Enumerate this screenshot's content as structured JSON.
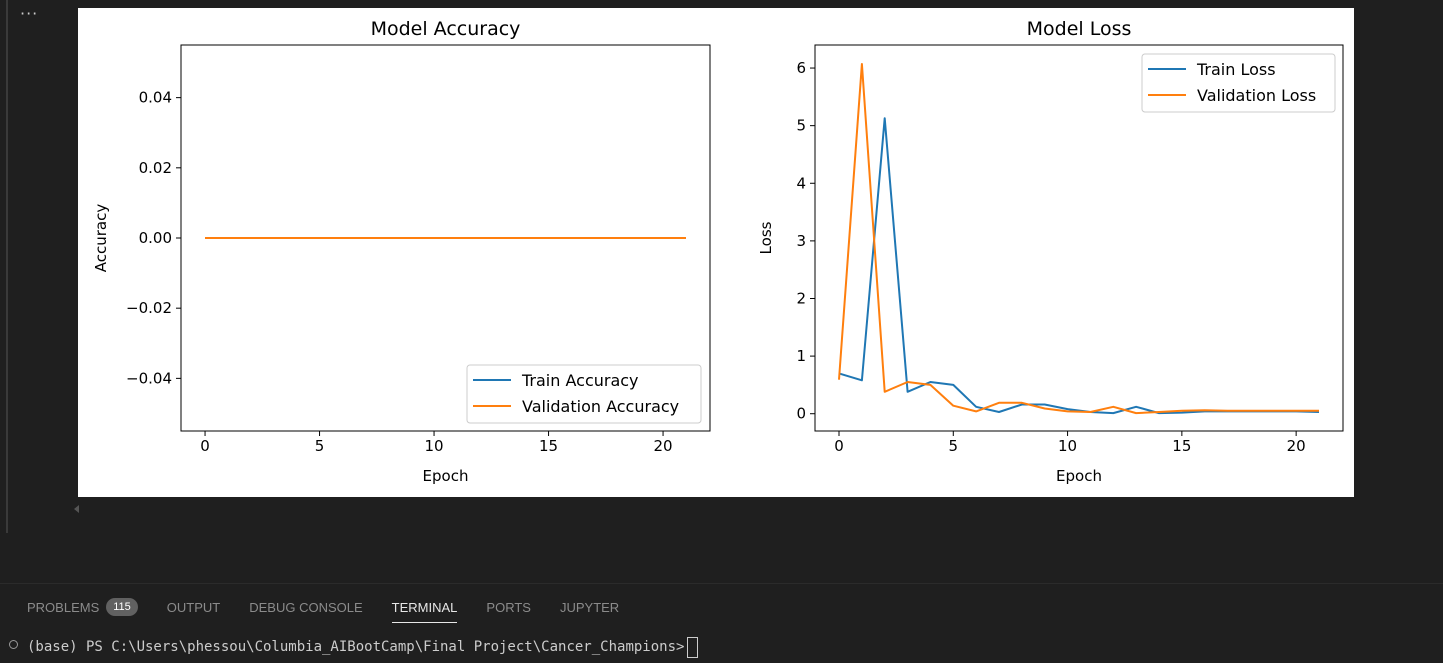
{
  "cell": {
    "more_icon": "ellipsis-icon",
    "more_label": "···"
  },
  "chart_data": [
    {
      "type": "line",
      "title": "Model Accuracy",
      "xlabel": "Epoch",
      "ylabel": "Accuracy",
      "xlim": [
        -1.05,
        22.05
      ],
      "ylim": [
        -0.055,
        0.055
      ],
      "xticks": [
        0,
        5,
        10,
        15,
        20
      ],
      "xtick_labels": [
        "0",
        "5",
        "10",
        "15",
        "20"
      ],
      "yticks": [
        -0.04,
        -0.02,
        0.0,
        0.02,
        0.04
      ],
      "ytick_labels": [
        "−0.04",
        "−0.02",
        "0.00",
        "0.02",
        "0.04"
      ],
      "legend_position": "lower-right",
      "x": [
        0,
        1,
        2,
        3,
        4,
        5,
        6,
        7,
        8,
        9,
        10,
        11,
        12,
        13,
        14,
        15,
        16,
        17,
        18,
        19,
        20,
        21
      ],
      "series": [
        {
          "name": "Train Accuracy",
          "color": "#1f77b4",
          "values": [
            0,
            0,
            0,
            0,
            0,
            0,
            0,
            0,
            0,
            0,
            0,
            0,
            0,
            0,
            0,
            0,
            0,
            0,
            0,
            0,
            0,
            0
          ]
        },
        {
          "name": "Validation Accuracy",
          "color": "#ff7f0e",
          "values": [
            0,
            0,
            0,
            0,
            0,
            0,
            0,
            0,
            0,
            0,
            0,
            0,
            0,
            0,
            0,
            0,
            0,
            0,
            0,
            0,
            0,
            0
          ]
        }
      ]
    },
    {
      "type": "line",
      "title": "Model Loss",
      "xlabel": "Epoch",
      "ylabel": "Loss",
      "xlim": [
        -1.05,
        22.05
      ],
      "ylim": [
        -0.3,
        6.4
      ],
      "xticks": [
        0,
        5,
        10,
        15,
        20
      ],
      "xtick_labels": [
        "0",
        "5",
        "10",
        "15",
        "20"
      ],
      "yticks": [
        0,
        1,
        2,
        3,
        4,
        5,
        6
      ],
      "ytick_labels": [
        "0",
        "1",
        "2",
        "3",
        "4",
        "5",
        "6"
      ],
      "legend_position": "upper-right",
      "x": [
        0,
        1,
        2,
        3,
        4,
        5,
        6,
        7,
        8,
        9,
        10,
        11,
        12,
        13,
        14,
        15,
        16,
        17,
        18,
        19,
        20,
        21
      ],
      "series": [
        {
          "name": "Train Loss",
          "color": "#1f77b4",
          "values": [
            0.7,
            0.58,
            5.13,
            0.38,
            0.55,
            0.5,
            0.12,
            0.03,
            0.16,
            0.16,
            0.08,
            0.03,
            0.01,
            0.12,
            0.01,
            0.02,
            0.04,
            0.04,
            0.04,
            0.04,
            0.04,
            0.03
          ]
        },
        {
          "name": "Validation Loss",
          "color": "#ff7f0e",
          "values": [
            0.59,
            6.07,
            0.38,
            0.55,
            0.5,
            0.14,
            0.04,
            0.19,
            0.19,
            0.09,
            0.04,
            0.03,
            0.12,
            0.01,
            0.03,
            0.05,
            0.06,
            0.05,
            0.05,
            0.05,
            0.05,
            0.05
          ]
        }
      ]
    }
  ],
  "panel": {
    "tabs": [
      {
        "label": "PROBLEMS",
        "badge": "115"
      },
      {
        "label": "OUTPUT"
      },
      {
        "label": "DEBUG CONSOLE"
      },
      {
        "label": "TERMINAL",
        "active": true
      },
      {
        "label": "PORTS"
      },
      {
        "label": "JUPYTER"
      }
    ]
  },
  "terminal": {
    "status_icon": "circle-outline-icon",
    "prompt": "(base) PS C:\\Users\\phessou\\Columbia_AIBootCamp\\Final Project\\Cancer_Champions>"
  }
}
